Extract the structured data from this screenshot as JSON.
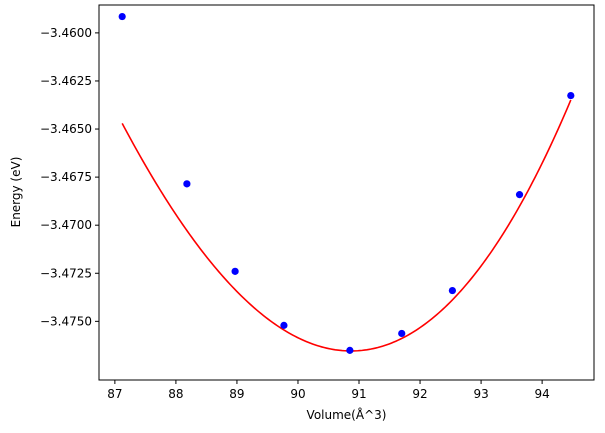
{
  "chart_data": {
    "type": "scatter",
    "title": "",
    "xlabel": "Volume(Å^3)",
    "ylabel": "Energy (eV)",
    "xlim": [
      86.74,
      94.85
    ],
    "ylim": [
      -3.47805,
      -3.45855
    ],
    "x_ticks": [
      87,
      88,
      89,
      90,
      91,
      92,
      93,
      94
    ],
    "y_ticks": [
      -3.46,
      -3.4625,
      -3.465,
      -3.4675,
      -3.47,
      -3.4725,
      -3.475
    ],
    "x_tick_labels": [
      "87",
      "88",
      "89",
      "90",
      "91",
      "92",
      "93",
      "94"
    ],
    "y_tick_labels": [
      "−3.4600",
      "−3.4625",
      "−3.4650",
      "−3.4675",
      "−3.4700",
      "−3.4725",
      "−3.4750"
    ],
    "grid": false,
    "series": [
      {
        "kind": "points",
        "color": "#0000ff",
        "x": [
          87.12,
          88.18,
          88.97,
          89.77,
          90.85,
          91.7,
          92.53,
          93.63,
          94.47
        ],
        "y": [
          -3.45915,
          -3.46785,
          -3.4724,
          -3.47521,
          -3.47651,
          -3.47563,
          -3.4734,
          -3.46841,
          -3.46326
        ]
      },
      {
        "kind": "fit-curve",
        "color": "#ff0000",
        "x_range": [
          87.12,
          94.47
        ],
        "x_min": 90.87,
        "e_min": -3.47654,
        "b": 0.000926,
        "a3": 2.25e-05
      }
    ]
  }
}
